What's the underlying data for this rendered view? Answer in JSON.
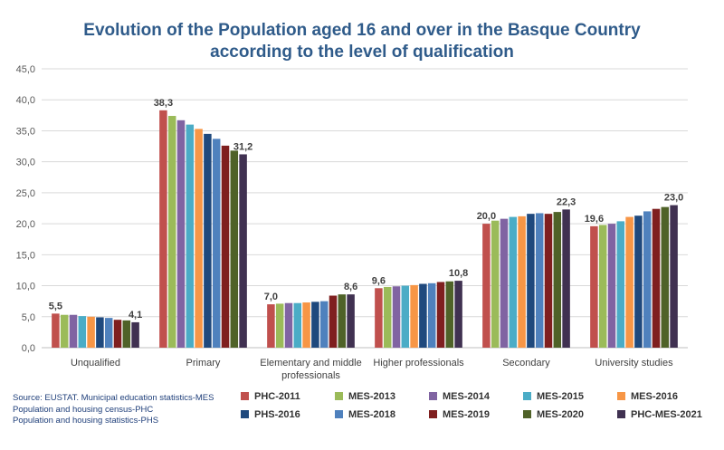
{
  "chart_data": {
    "type": "bar",
    "title": [
      "Evolution of the Population aged 16 and over in the Basque Country",
      "according to the level of qualification"
    ],
    "categories": [
      [
        "Unqualified"
      ],
      [
        "Primary"
      ],
      [
        "Elementary and middle",
        "professionals"
      ],
      [
        "Higher professionals"
      ],
      [
        "Secondary"
      ],
      [
        "University studies"
      ]
    ],
    "ylim": [
      0,
      45
    ],
    "yticks": [
      "0,0",
      "5,0",
      "10,0",
      "15,0",
      "20,0",
      "25,0",
      "30,0",
      "35,0",
      "40,0",
      "45,0"
    ],
    "grid": true,
    "legend_position": "bottom",
    "series": [
      {
        "name": "PHC-2011",
        "color": "#c0504d",
        "values": [
          5.5,
          38.3,
          7.0,
          9.6,
          20.0,
          19.6
        ]
      },
      {
        "name": "MES-2013",
        "color": "#9bbb59",
        "values": [
          5.3,
          37.4,
          7.1,
          9.8,
          20.5,
          19.8
        ]
      },
      {
        "name": "MES-2014",
        "color": "#8064a2",
        "values": [
          5.3,
          36.7,
          7.2,
          9.9,
          20.8,
          20.0
        ]
      },
      {
        "name": "MES-2015",
        "color": "#4bacc6",
        "values": [
          5.1,
          36.0,
          7.2,
          10.0,
          21.1,
          20.4
        ]
      },
      {
        "name": "MES-2016",
        "color": "#f79646",
        "values": [
          5.0,
          35.3,
          7.3,
          10.1,
          21.2,
          21.1
        ]
      },
      {
        "name": "PHS-2016",
        "color": "#1f497d",
        "values": [
          4.9,
          34.5,
          7.4,
          10.3,
          21.6,
          21.3
        ]
      },
      {
        "name": "MES-2018",
        "color": "#4f81bd",
        "values": [
          4.8,
          33.7,
          7.5,
          10.4,
          21.7,
          22.0
        ]
      },
      {
        "name": "MES-2019",
        "color": "#7f1f1f",
        "values": [
          4.5,
          32.6,
          8.4,
          10.6,
          21.6,
          22.4
        ]
      },
      {
        "name": "MES-2020",
        "color": "#4f6228",
        "values": [
          4.4,
          31.8,
          8.6,
          10.7,
          21.9,
          22.7
        ]
      },
      {
        "name": "PHC-MES-2021",
        "color": "#403151",
        "values": [
          4.1,
          31.2,
          8.6,
          10.8,
          22.3,
          23.0
        ]
      }
    ],
    "data_labels": [
      {
        "category": 0,
        "series": 0,
        "text": "5,5"
      },
      {
        "category": 0,
        "series": 9,
        "text": "4,1"
      },
      {
        "category": 1,
        "series": 0,
        "text": "38,3"
      },
      {
        "category": 1,
        "series": 9,
        "text": "31,2"
      },
      {
        "category": 2,
        "series": 0,
        "text": "7,0"
      },
      {
        "category": 2,
        "series": 9,
        "text": "8,6"
      },
      {
        "category": 3,
        "series": 0,
        "text": "9,6"
      },
      {
        "category": 3,
        "series": 9,
        "text": "10,8"
      },
      {
        "category": 4,
        "series": 0,
        "text": "20,0"
      },
      {
        "category": 4,
        "series": 9,
        "text": "22,3"
      },
      {
        "category": 5,
        "series": 0,
        "text": "19,6"
      },
      {
        "category": 5,
        "series": 9,
        "text": "23,0"
      }
    ]
  },
  "source": {
    "line1": "Source: EUSTAT. Municipal education statistics-MES",
    "line2": "Population and housing census-PHC",
    "line3": "Population and housing statistics-PHS"
  }
}
